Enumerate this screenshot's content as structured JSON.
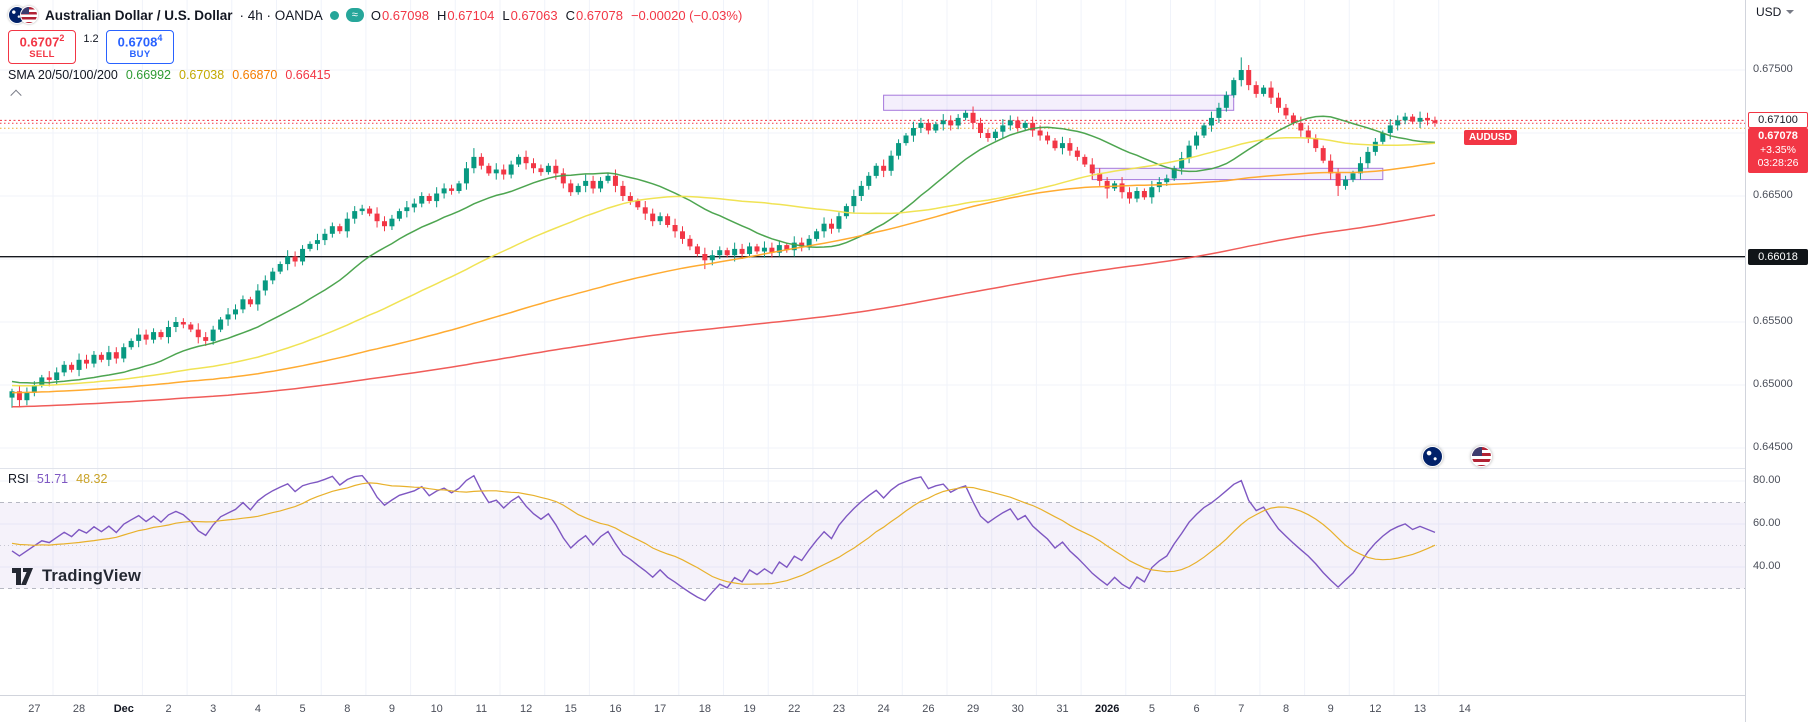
{
  "header": {
    "title": "Australian Dollar / U.S. Dollar",
    "meta": "· 4h · OANDA",
    "approx_glyph": "≈",
    "ohlc": [
      {
        "label": "O",
        "value": "0.67098"
      },
      {
        "label": "H",
        "value": "0.67104"
      },
      {
        "label": "L",
        "value": "0.67063"
      },
      {
        "label": "C",
        "value": "0.67078"
      }
    ],
    "change": "−0.00020 (−0.03%)",
    "accent_up": "#089981",
    "accent_down": "#f23645"
  },
  "trade_panel": {
    "sell_price": "0.6707",
    "sell_sup": "2",
    "sell_label": "SELL",
    "spread": "1.2",
    "buy_price": "0.6708",
    "buy_sup": "4",
    "buy_label": "BUY"
  },
  "sma_legend": {
    "label": "SMA 20/50/100/200",
    "v20": "0.66992",
    "v50": "0.67038",
    "v100": "0.66870",
    "v200": "0.66415"
  },
  "rsi_legend": {
    "label": "RSI",
    "value": "51.71",
    "ma_value": "48.32"
  },
  "logo": {
    "text": "TradingView"
  },
  "price_axis": {
    "currency": "USD",
    "labels": [
      {
        "text": "0.67500",
        "value": 0.675
      },
      {
        "text": "0.66500",
        "value": 0.665
      },
      {
        "text": "0.65500",
        "value": 0.655
      },
      {
        "text": "0.65000",
        "value": 0.65
      },
      {
        "text": "0.64500",
        "value": 0.645
      }
    ],
    "alert_badge": {
      "text": "0.67100",
      "value": 0.671
    },
    "dark_badge": {
      "text": "0.66018",
      "value": 0.66018
    },
    "price_badge": {
      "symbol": "AUDUSD",
      "price": "0.67078",
      "change_pct": "+3.35%",
      "countdown": "03:28:26",
      "value": 0.67078
    }
  },
  "rsi_axis": {
    "labels": [
      {
        "text": "80.00",
        "value": 80
      },
      {
        "text": "60.00",
        "value": 60
      },
      {
        "text": "40.00",
        "value": 40
      }
    ]
  },
  "time_axis": {
    "labels": [
      {
        "t": "27"
      },
      {
        "t": "28"
      },
      {
        "t": "Dec",
        "b": true
      },
      {
        "t": "2"
      },
      {
        "t": "3"
      },
      {
        "t": "4"
      },
      {
        "t": "5"
      },
      {
        "t": "8"
      },
      {
        "t": "9"
      },
      {
        "t": "10"
      },
      {
        "t": "11"
      },
      {
        "t": "12"
      },
      {
        "t": "15"
      },
      {
        "t": "16"
      },
      {
        "t": "17"
      },
      {
        "t": "18"
      },
      {
        "t": "19"
      },
      {
        "t": "22"
      },
      {
        "t": "23"
      },
      {
        "t": "24"
      },
      {
        "t": "26"
      },
      {
        "t": "29"
      },
      {
        "t": "30"
      },
      {
        "t": "31"
      },
      {
        "t": "2026",
        "b": true
      },
      {
        "t": "5"
      },
      {
        "t": "6"
      },
      {
        "t": "7"
      },
      {
        "t": "8"
      },
      {
        "t": "9"
      },
      {
        "t": "12"
      },
      {
        "t": "13"
      },
      {
        "t": "14"
      }
    ]
  },
  "chart_data": {
    "type": "candlestick",
    "title": "AUDUSD · 4h · OANDA",
    "ylim": [
      0.6434,
      0.6806
    ],
    "candles": {
      "first_open": 0.649,
      "prehistory": {
        "start": 0.646,
        "end": 0.6505,
        "count": 200,
        "zigzag": 0.0005
      },
      "closes": [
        0.6495,
        0.6488,
        0.6494,
        0.65,
        0.6506,
        0.6504,
        0.651,
        0.6516,
        0.6512,
        0.652,
        0.6517,
        0.6524,
        0.652,
        0.6526,
        0.6521,
        0.653,
        0.6535,
        0.654,
        0.6536,
        0.6542,
        0.6538,
        0.6546,
        0.655,
        0.6548,
        0.6544,
        0.6538,
        0.6535,
        0.6544,
        0.6552,
        0.6556,
        0.656,
        0.6568,
        0.6564,
        0.6575,
        0.6583,
        0.659,
        0.6596,
        0.6602,
        0.6598,
        0.6608,
        0.6612,
        0.6615,
        0.662,
        0.6626,
        0.6622,
        0.6632,
        0.6638,
        0.664,
        0.6636,
        0.663,
        0.6626,
        0.6632,
        0.6638,
        0.6641,
        0.6644,
        0.665,
        0.6646,
        0.6652,
        0.6656,
        0.6654,
        0.666,
        0.6672,
        0.6681,
        0.6674,
        0.6668,
        0.6671,
        0.6667,
        0.6675,
        0.6681,
        0.6676,
        0.6672,
        0.6669,
        0.6674,
        0.6668,
        0.666,
        0.6653,
        0.6658,
        0.6662,
        0.6656,
        0.6662,
        0.6666,
        0.6658,
        0.665,
        0.6646,
        0.6641,
        0.6636,
        0.663,
        0.6634,
        0.6627,
        0.6622,
        0.6616,
        0.661,
        0.6604,
        0.6599,
        0.6603,
        0.6607,
        0.6603,
        0.6608,
        0.6604,
        0.661,
        0.6606,
        0.6609,
        0.6605,
        0.6611,
        0.6607,
        0.6613,
        0.661,
        0.6616,
        0.6622,
        0.6628,
        0.6624,
        0.6634,
        0.6642,
        0.665,
        0.6658,
        0.6666,
        0.6674,
        0.667,
        0.6682,
        0.6692,
        0.6698,
        0.6704,
        0.6708,
        0.6702,
        0.6707,
        0.671,
        0.6706,
        0.6712,
        0.6716,
        0.6708,
        0.67,
        0.6696,
        0.6701,
        0.6706,
        0.671,
        0.6704,
        0.6708,
        0.6702,
        0.6698,
        0.6694,
        0.6688,
        0.6692,
        0.6686,
        0.6681,
        0.6675,
        0.6668,
        0.6662,
        0.6656,
        0.666,
        0.6653,
        0.6648,
        0.6654,
        0.6649,
        0.6657,
        0.6661,
        0.6664,
        0.6672,
        0.668,
        0.669,
        0.6698,
        0.6706,
        0.6712,
        0.672,
        0.673,
        0.6742,
        0.675,
        0.6738,
        0.6731,
        0.6736,
        0.6728,
        0.672,
        0.6714,
        0.6708,
        0.6702,
        0.6696,
        0.6688,
        0.6678,
        0.6668,
        0.6658,
        0.6663,
        0.6668,
        0.6676,
        0.6685,
        0.6693,
        0.67,
        0.6706,
        0.671,
        0.6713,
        0.6709,
        0.6712,
        0.671,
        0.6708
      ]
    },
    "wick_overrides": {
      "0": {
        "l": 0.6482
      },
      "62": {
        "h": 0.6688
      },
      "93": {
        "l": 0.6592
      },
      "147": {
        "l": 0.6648
      },
      "165": {
        "h": 0.676
      },
      "166": {
        "h": 0.6754
      },
      "178": {
        "l": 0.665
      }
    },
    "sma": {
      "periods": [
        20,
        50,
        100,
        200
      ],
      "colors": [
        "#43a047",
        "#efe24b",
        "#ffa726",
        "#ef5350"
      ],
      "last_values": [
        0.66992,
        0.67038,
        0.6687,
        0.66415
      ]
    },
    "rsi": {
      "period": 14,
      "ma_period": 14,
      "color": "#7e57c2",
      "ma_color": "#e8b12c",
      "band": [
        30,
        70
      ],
      "scale_values": [
        80,
        60,
        40
      ],
      "last_value": 51.71,
      "last_ma": 48.32
    },
    "price_grid": [
      0.675,
      0.67,
      0.665,
      0.66,
      0.655,
      0.65,
      0.645
    ],
    "hlines": [
      {
        "value": 0.671,
        "color": "#f23645",
        "dash": "2 2.5",
        "width": 1
      },
      {
        "value": 0.67078,
        "color": "#f23645",
        "dash": "1.5 2.5",
        "width": 1
      },
      {
        "value": 0.67038,
        "color": "#f0a830",
        "dash": "1.5 2.5",
        "width": 1
      },
      {
        "value": 0.66018,
        "color": "#15181e",
        "dash": "",
        "width": 1.4
      }
    ],
    "boxes": [
      {
        "i1": 117,
        "i2": 164,
        "p1": 0.6718,
        "p2": 0.673
      },
      {
        "i1": 145,
        "i2": 184,
        "p1": 0.6663,
        "p2": 0.6672
      }
    ]
  }
}
